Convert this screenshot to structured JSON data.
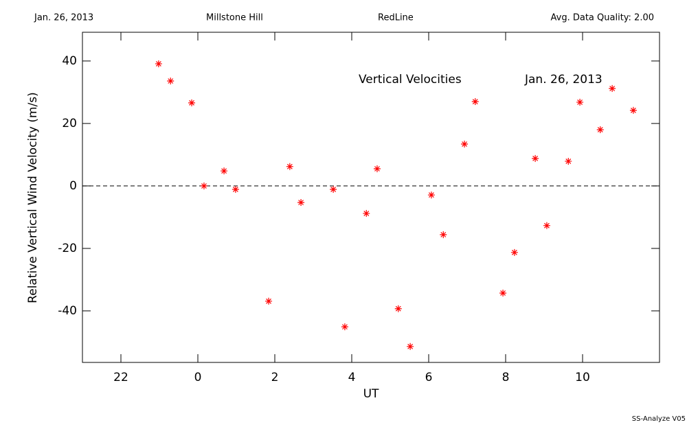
{
  "chart_data": {
    "type": "scatter",
    "header": [
      "Jan. 26, 2013",
      "Millstone Hill",
      "RedLine",
      "Avg. Data Quality: 2.00"
    ],
    "annotations": [
      "Vertical Velocities",
      "Jan. 26, 2013"
    ],
    "footer": "SS-Analyze V05",
    "x_label": "UT",
    "y_label": "Relative Vertical Wind Velocity (m/s)",
    "color": "#ff0000",
    "x": [
      -1.02,
      -0.71,
      -0.16,
      0.16,
      0.68,
      0.98,
      1.84,
      2.39,
      2.68,
      3.52,
      3.82,
      4.38,
      4.66,
      5.21,
      5.52,
      6.07,
      6.38,
      6.93,
      7.21,
      7.93,
      8.23,
      8.77,
      9.07,
      9.63,
      9.93,
      10.46,
      10.77,
      11.32
    ],
    "values": [
      39.1,
      33.6,
      26.6,
      0,
      4.8,
      -1.1,
      -36.9,
      6.2,
      -5.3,
      -1.1,
      -45.1,
      -8.8,
      5.5,
      -39.3,
      -51.4,
      -2.9,
      -15.6,
      13.4,
      27.0,
      -34.3,
      -21.3,
      8.8,
      -12.7,
      7.9,
      26.8,
      18.0,
      31.2,
      24.2
    ],
    "xlim": [
      -3,
      12
    ],
    "ylim": [
      -56.5,
      49.2
    ],
    "xticks": [
      {
        "value": -2,
        "label": "22"
      },
      0,
      2,
      4,
      6,
      8,
      10
    ],
    "yticks": [
      -40,
      -20,
      0,
      20,
      40
    ],
    "hline": 0
  }
}
